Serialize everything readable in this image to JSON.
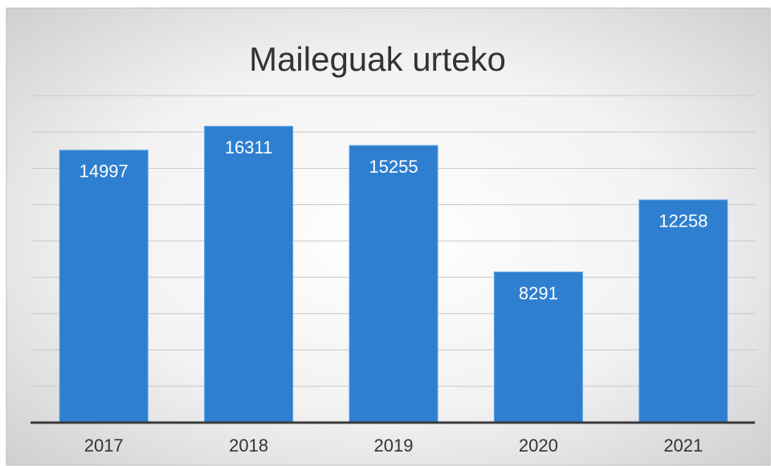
{
  "chart_data": {
    "type": "bar",
    "title": "Maileguak urteko",
    "categories": [
      "2017",
      "2018",
      "2019",
      "2020",
      "2021"
    ],
    "values": [
      14997,
      16311,
      15255,
      8291,
      12258
    ],
    "color": "#2f7fd0",
    "ylim": [
      0,
      18000
    ],
    "yticks": [
      0,
      2000,
      4000,
      6000,
      8000,
      10000,
      12000,
      14000,
      16000,
      18000
    ],
    "grid": true
  }
}
